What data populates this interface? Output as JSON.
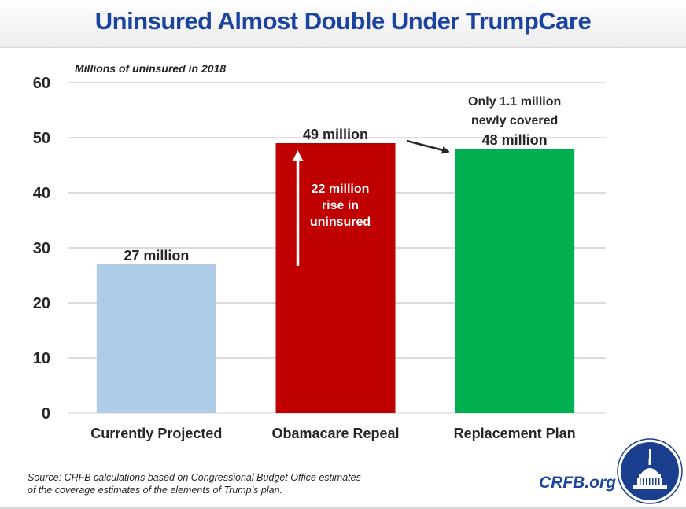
{
  "title": "Uninsured Almost Double Under TrumpCare",
  "subtitle": "Millions of uninsured in 2018",
  "source_note": "Source: CRFB calculations based on Congressional Budget Office estimates of the coverage estimates of the elements of Trump’s plan.",
  "source_lines": [
    "Source: CRFB calculations based on Congressional Budget Office estimates",
    "of the coverage estimates of the elements of Trump’s plan."
  ],
  "brand": "CRFB.org",
  "logo_icon": "capitol-dome-logo-icon",
  "colors": {
    "title": "#1b44a0",
    "bars": [
      "#afcce6",
      "#c00000",
      "#00b050"
    ],
    "grid": "#c8c8c8"
  },
  "chart_data": {
    "type": "bar",
    "title": "Uninsured Almost Double Under TrumpCare",
    "subtitle": "Millions of uninsured in 2018",
    "xlabel": "",
    "ylabel": "Millions of uninsured in 2018",
    "categories": [
      "Currently Projected",
      "Obamacare Repeal",
      "Replacement Plan"
    ],
    "values": [
      27,
      49,
      48
    ],
    "data_labels": [
      "27 million",
      "49 million",
      "48 million"
    ],
    "ylim": [
      0,
      60
    ],
    "yticks": [
      0,
      10,
      20,
      30,
      40,
      50,
      60
    ],
    "ytick_labels": [
      "0",
      "10",
      "20",
      "30",
      "40",
      "50",
      "60"
    ],
    "grid": true,
    "legend": "none",
    "annotations": [
      {
        "text_lines": [
          "22 million",
          "rise in",
          "uninsured"
        ],
        "target": "Obamacare Repeal",
        "type": "up-arrow",
        "from": 27,
        "to": 49
      },
      {
        "text_lines": [
          "Only 1.1 million",
          "newly covered"
        ],
        "target": "Replacement Plan",
        "type": "arrow",
        "from_category": "Obamacare Repeal"
      }
    ]
  }
}
